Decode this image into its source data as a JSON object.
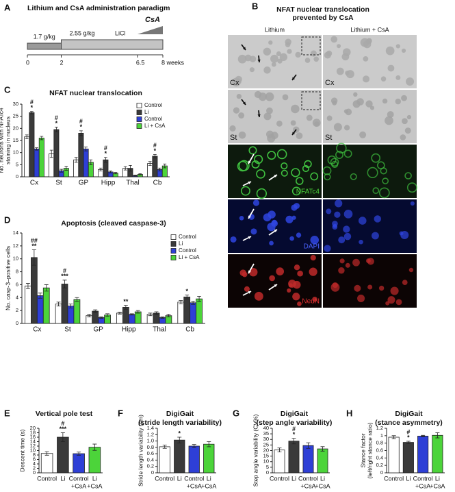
{
  "timeline": {
    "panel": "A",
    "title": "Lithium and CsA administration paradigm",
    "doses": [
      "1.7 g/kg",
      "2.55 g/kg"
    ],
    "drug": "LiCl",
    "csa": "CsA",
    "xlim": [
      0,
      8
    ],
    "xticks": [
      0,
      2,
      6.5,
      {
        "value": 8,
        "label": "8 weeks"
      }
    ]
  },
  "images": {
    "panel": "B",
    "title": [
      "NFAT nuclear translocation",
      "prevented by CsA"
    ],
    "columns": [
      "Lithium",
      "Lithium + CsA"
    ],
    "rows": [
      "Cx",
      "St",
      "NFATc4",
      "DAPI",
      "NeuN"
    ]
  },
  "chart_data": [
    {
      "panel": "C",
      "type": "bar",
      "title": [
        "NFAT nuclear translocation"
      ],
      "ylabel": [
        "No. neurons with NFATc4",
        "staining in nucleus"
      ],
      "categories": [
        "Cx",
        "St",
        "GP",
        "Hipp",
        "Thal",
        "Cb"
      ],
      "series": [
        {
          "name": "Control",
          "color": "#ffffff",
          "values": [
            16.5,
            9.5,
            7,
            3,
            3.5,
            5.5
          ],
          "errors": [
            0.8,
            1.5,
            1,
            0.6,
            0.7,
            0.8
          ]
        },
        {
          "name": "Li",
          "color": "#3a3a3a",
          "values": [
            26.5,
            19.5,
            18,
            7,
            3.5,
            8.5
          ],
          "errors": [
            0.5,
            1,
            1,
            1,
            1.2,
            0.7
          ],
          "significance": [
            [
              "#",
              "*"
            ],
            [
              "#",
              "*"
            ],
            [
              "#",
              "*"
            ],
            [
              "#",
              "*"
            ],
            null,
            [
              "#",
              "*"
            ]
          ]
        },
        {
          "name": "Control",
          "color": "#2e3fd6",
          "values": [
            11.5,
            2.5,
            11.5,
            2,
            0.5,
            3
          ],
          "errors": [
            0.5,
            0.6,
            0.8,
            0.4,
            0.2,
            0.6
          ]
        },
        {
          "name": "Li + CsA",
          "color": "#4cd43a",
          "values": [
            16,
            3.5,
            6,
            1.5,
            1,
            4.5
          ],
          "errors": [
            0.7,
            0.8,
            1,
            0.3,
            0.3,
            0.8
          ]
        }
      ],
      "ylim": [
        0,
        30
      ],
      "yticks": [
        0,
        5,
        10,
        15,
        20,
        25,
        30
      ],
      "legend": "upper right"
    },
    {
      "panel": "D",
      "type": "bar",
      "title": [
        "Apoptosis (cleaved caspase-3)"
      ],
      "ylabel": [
        "No. casp-3–positive cells"
      ],
      "categories": [
        "Cx",
        "St",
        "GP",
        "Hipp",
        "Thal",
        "Cb"
      ],
      "series": [
        {
          "name": "Control",
          "color": "#ffffff",
          "values": [
            5.8,
            3,
            1.2,
            1.6,
            1.4,
            3.3
          ],
          "errors": [
            0.4,
            0.3,
            0.2,
            0.15,
            0.2,
            0.25
          ]
        },
        {
          "name": "Li",
          "color": "#3a3a3a",
          "values": [
            10.2,
            6.1,
            1.9,
            2.5,
            1.6,
            4.1
          ],
          "errors": [
            1.2,
            0.6,
            0.2,
            0.3,
            0.2,
            0.3
          ],
          "significance": [
            [
              "##",
              "**"
            ],
            [
              "#",
              "***"
            ],
            null,
            [
              "**"
            ],
            null,
            [
              "*"
            ]
          ]
        },
        {
          "name": "Control",
          "color": "#2e3fd6",
          "values": [
            4.3,
            2.7,
            0.9,
            1.4,
            0.9,
            3.2
          ],
          "errors": [
            0.4,
            0.3,
            0.1,
            0.1,
            0.1,
            0.25
          ]
        },
        {
          "name": "Li + CsA",
          "color": "#4cd43a",
          "values": [
            5.5,
            3.7,
            1.3,
            1.8,
            1.2,
            3.8
          ],
          "errors": [
            0.5,
            0.3,
            0.2,
            0.2,
            0.2,
            0.4
          ]
        }
      ],
      "ylim": [
        0,
        14
      ],
      "yticks": [
        0,
        2,
        4,
        6,
        8,
        10,
        12,
        14
      ],
      "legend": "upper right"
    },
    {
      "panel": "E",
      "type": "bar",
      "title": [
        "Vertical pole test"
      ],
      "ylabel": [
        "Descent time (s)"
      ],
      "categories": [
        [
          "Control"
        ],
        [
          "Li"
        ],
        [
          "Control",
          "+CsA"
        ],
        [
          "Li",
          "+CsA"
        ]
      ],
      "colors": [
        "#ffffff",
        "#3a3a3a",
        "#2e3fd6",
        "#4cd43a"
      ],
      "values": [
        8.7,
        16,
        8.6,
        11.5
      ],
      "errors": [
        0.8,
        2,
        0.7,
        1.4
      ],
      "significance": [
        null,
        [
          "#",
          "***"
        ],
        null,
        null
      ],
      "ylim": [
        0,
        20
      ],
      "yticks": [
        0,
        2,
        4,
        6,
        8,
        10,
        12,
        14,
        16,
        18,
        20
      ]
    },
    {
      "panel": "F",
      "type": "bar",
      "title": [
        "DigiGait",
        "(stride length variability)"
      ],
      "ylabel": [
        "Stride length variability (cm)"
      ],
      "categories": [
        [
          "Control"
        ],
        [
          "Li"
        ],
        [
          "Control",
          "+CsA"
        ],
        [
          "Li",
          "+CsA"
        ]
      ],
      "colors": [
        "#ffffff",
        "#3a3a3a",
        "#2e3fd6",
        "#4cd43a"
      ],
      "values": [
        0.82,
        1.03,
        0.84,
        0.9
      ],
      "errors": [
        0.05,
        0.09,
        0.05,
        0.08
      ],
      "significance": [
        null,
        [
          "*"
        ],
        null,
        null
      ],
      "ylim": [
        0,
        1.4
      ],
      "yticks": [
        0,
        0.2,
        0.4,
        0.6,
        0.8,
        {
          "value": 1,
          "label": "1.0"
        },
        1.2,
        1.4
      ]
    },
    {
      "panel": "G",
      "type": "bar",
      "title": [
        "DigiGait",
        "(step angle variability)"
      ],
      "ylabel": [
        "Step angle variability (CV%)"
      ],
      "categories": [
        [
          "Control"
        ],
        [
          "Li"
        ],
        [
          "Control",
          "+CsA"
        ],
        [
          "Li",
          "+CsA"
        ]
      ],
      "colors": [
        "#ffffff",
        "#3a3a3a",
        "#2e3fd6",
        "#4cd43a"
      ],
      "values": [
        20.5,
        28.5,
        24.5,
        21.5
      ],
      "errors": [
        1.8,
        2.5,
        2.5,
        2
      ],
      "significance": [
        null,
        [
          "#",
          "*"
        ],
        null,
        null
      ],
      "ylim": [
        0,
        40
      ],
      "yticks": [
        0,
        5,
        10,
        15,
        20,
        25,
        30,
        35,
        40
      ]
    },
    {
      "panel": "H",
      "type": "bar",
      "title": [
        "DigiGait",
        "(stance asymmetry)"
      ],
      "ylabel": [
        "Stance factor",
        "(left/right stance ratio)"
      ],
      "categories": [
        [
          "Control"
        ],
        [
          "Li"
        ],
        [
          "Control",
          "+CsA"
        ],
        [
          "Li",
          "+CsA"
        ]
      ],
      "colors": [
        "#ffffff",
        "#3a3a3a",
        "#2e3fd6",
        "#4cd43a"
      ],
      "values": [
        0.96,
        0.82,
        0.99,
        1.01
      ],
      "errors": [
        0.04,
        0.03,
        0.02,
        0.07
      ],
      "significance": [
        null,
        [
          "#",
          "*"
        ],
        null,
        null
      ],
      "ylim": [
        0,
        1.2
      ],
      "yticks": [
        0,
        0.2,
        0.4,
        0.6,
        0.8,
        1,
        1.2
      ]
    }
  ]
}
